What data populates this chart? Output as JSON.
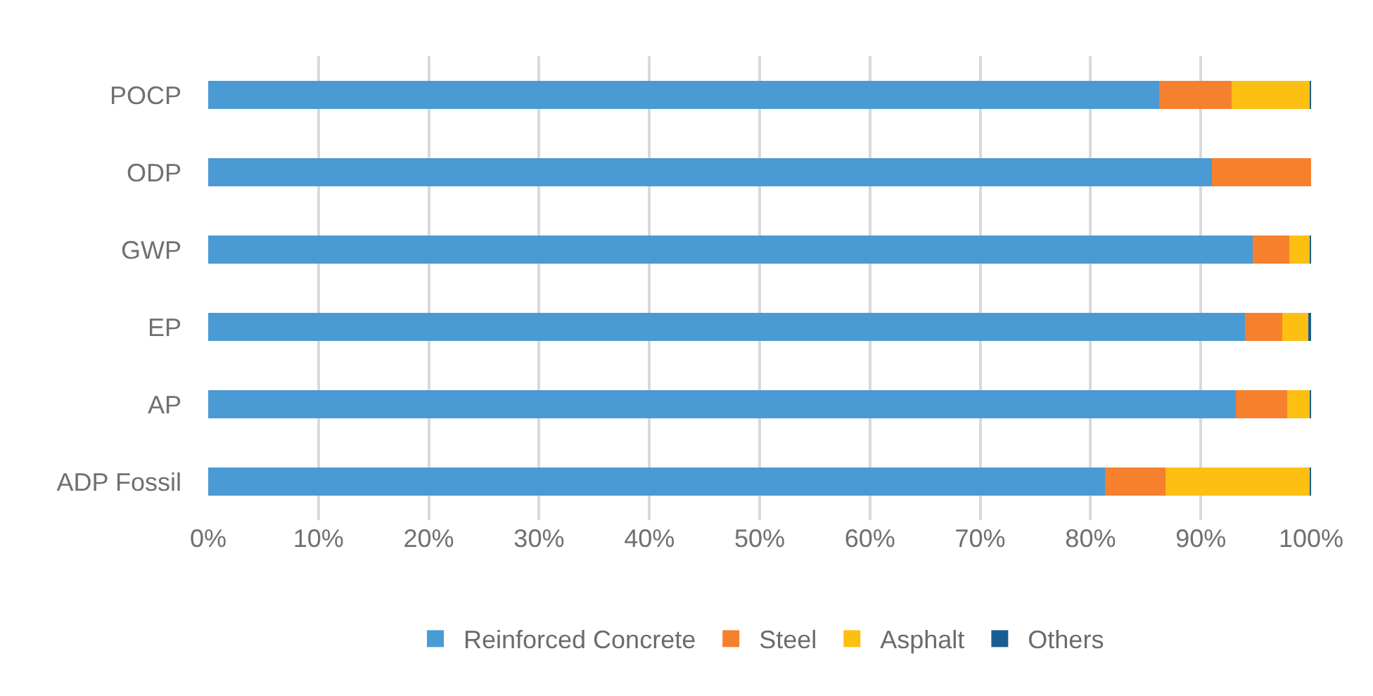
{
  "chart_data": {
    "type": "bar",
    "orientation": "horizontal",
    "stacked": true,
    "categories": [
      "POCP",
      "ODP",
      "GWP",
      "EP",
      "AP",
      "ADP Fossil"
    ],
    "series": [
      {
        "name": "Reinforced Concrete",
        "color": "#4a9ad4",
        "values": [
          86.2,
          91.0,
          94.7,
          94.0,
          93.2,
          81.3
        ]
      },
      {
        "name": "Steel",
        "color": "#f5802e",
        "values": [
          6.6,
          9.0,
          3.3,
          3.4,
          4.6,
          5.5
        ]
      },
      {
        "name": "Asphalt",
        "color": "#fdbf12",
        "values": [
          7.1,
          0,
          1.9,
          2.4,
          2.1,
          13.1
        ]
      },
      {
        "name": "Others",
        "color": "#1a5d94",
        "values": [
          0.1,
          0,
          0.1,
          0.2,
          0.1,
          0.1
        ]
      }
    ],
    "xlim": [
      0,
      100
    ],
    "xticks": [
      {
        "value": 0,
        "label": "0%"
      },
      {
        "value": 10,
        "label": "10%"
      },
      {
        "value": 20,
        "label": "20%"
      },
      {
        "value": 30,
        "label": "30%"
      },
      {
        "value": 40,
        "label": "40%"
      },
      {
        "value": 50,
        "label": "50%"
      },
      {
        "value": 60,
        "label": "60%"
      },
      {
        "value": 70,
        "label": "70%"
      },
      {
        "value": 80,
        "label": "80%"
      },
      {
        "value": 90,
        "label": "90%"
      },
      {
        "value": 100,
        "label": "100%"
      }
    ],
    "grid": "x",
    "legend": "bottom"
  }
}
